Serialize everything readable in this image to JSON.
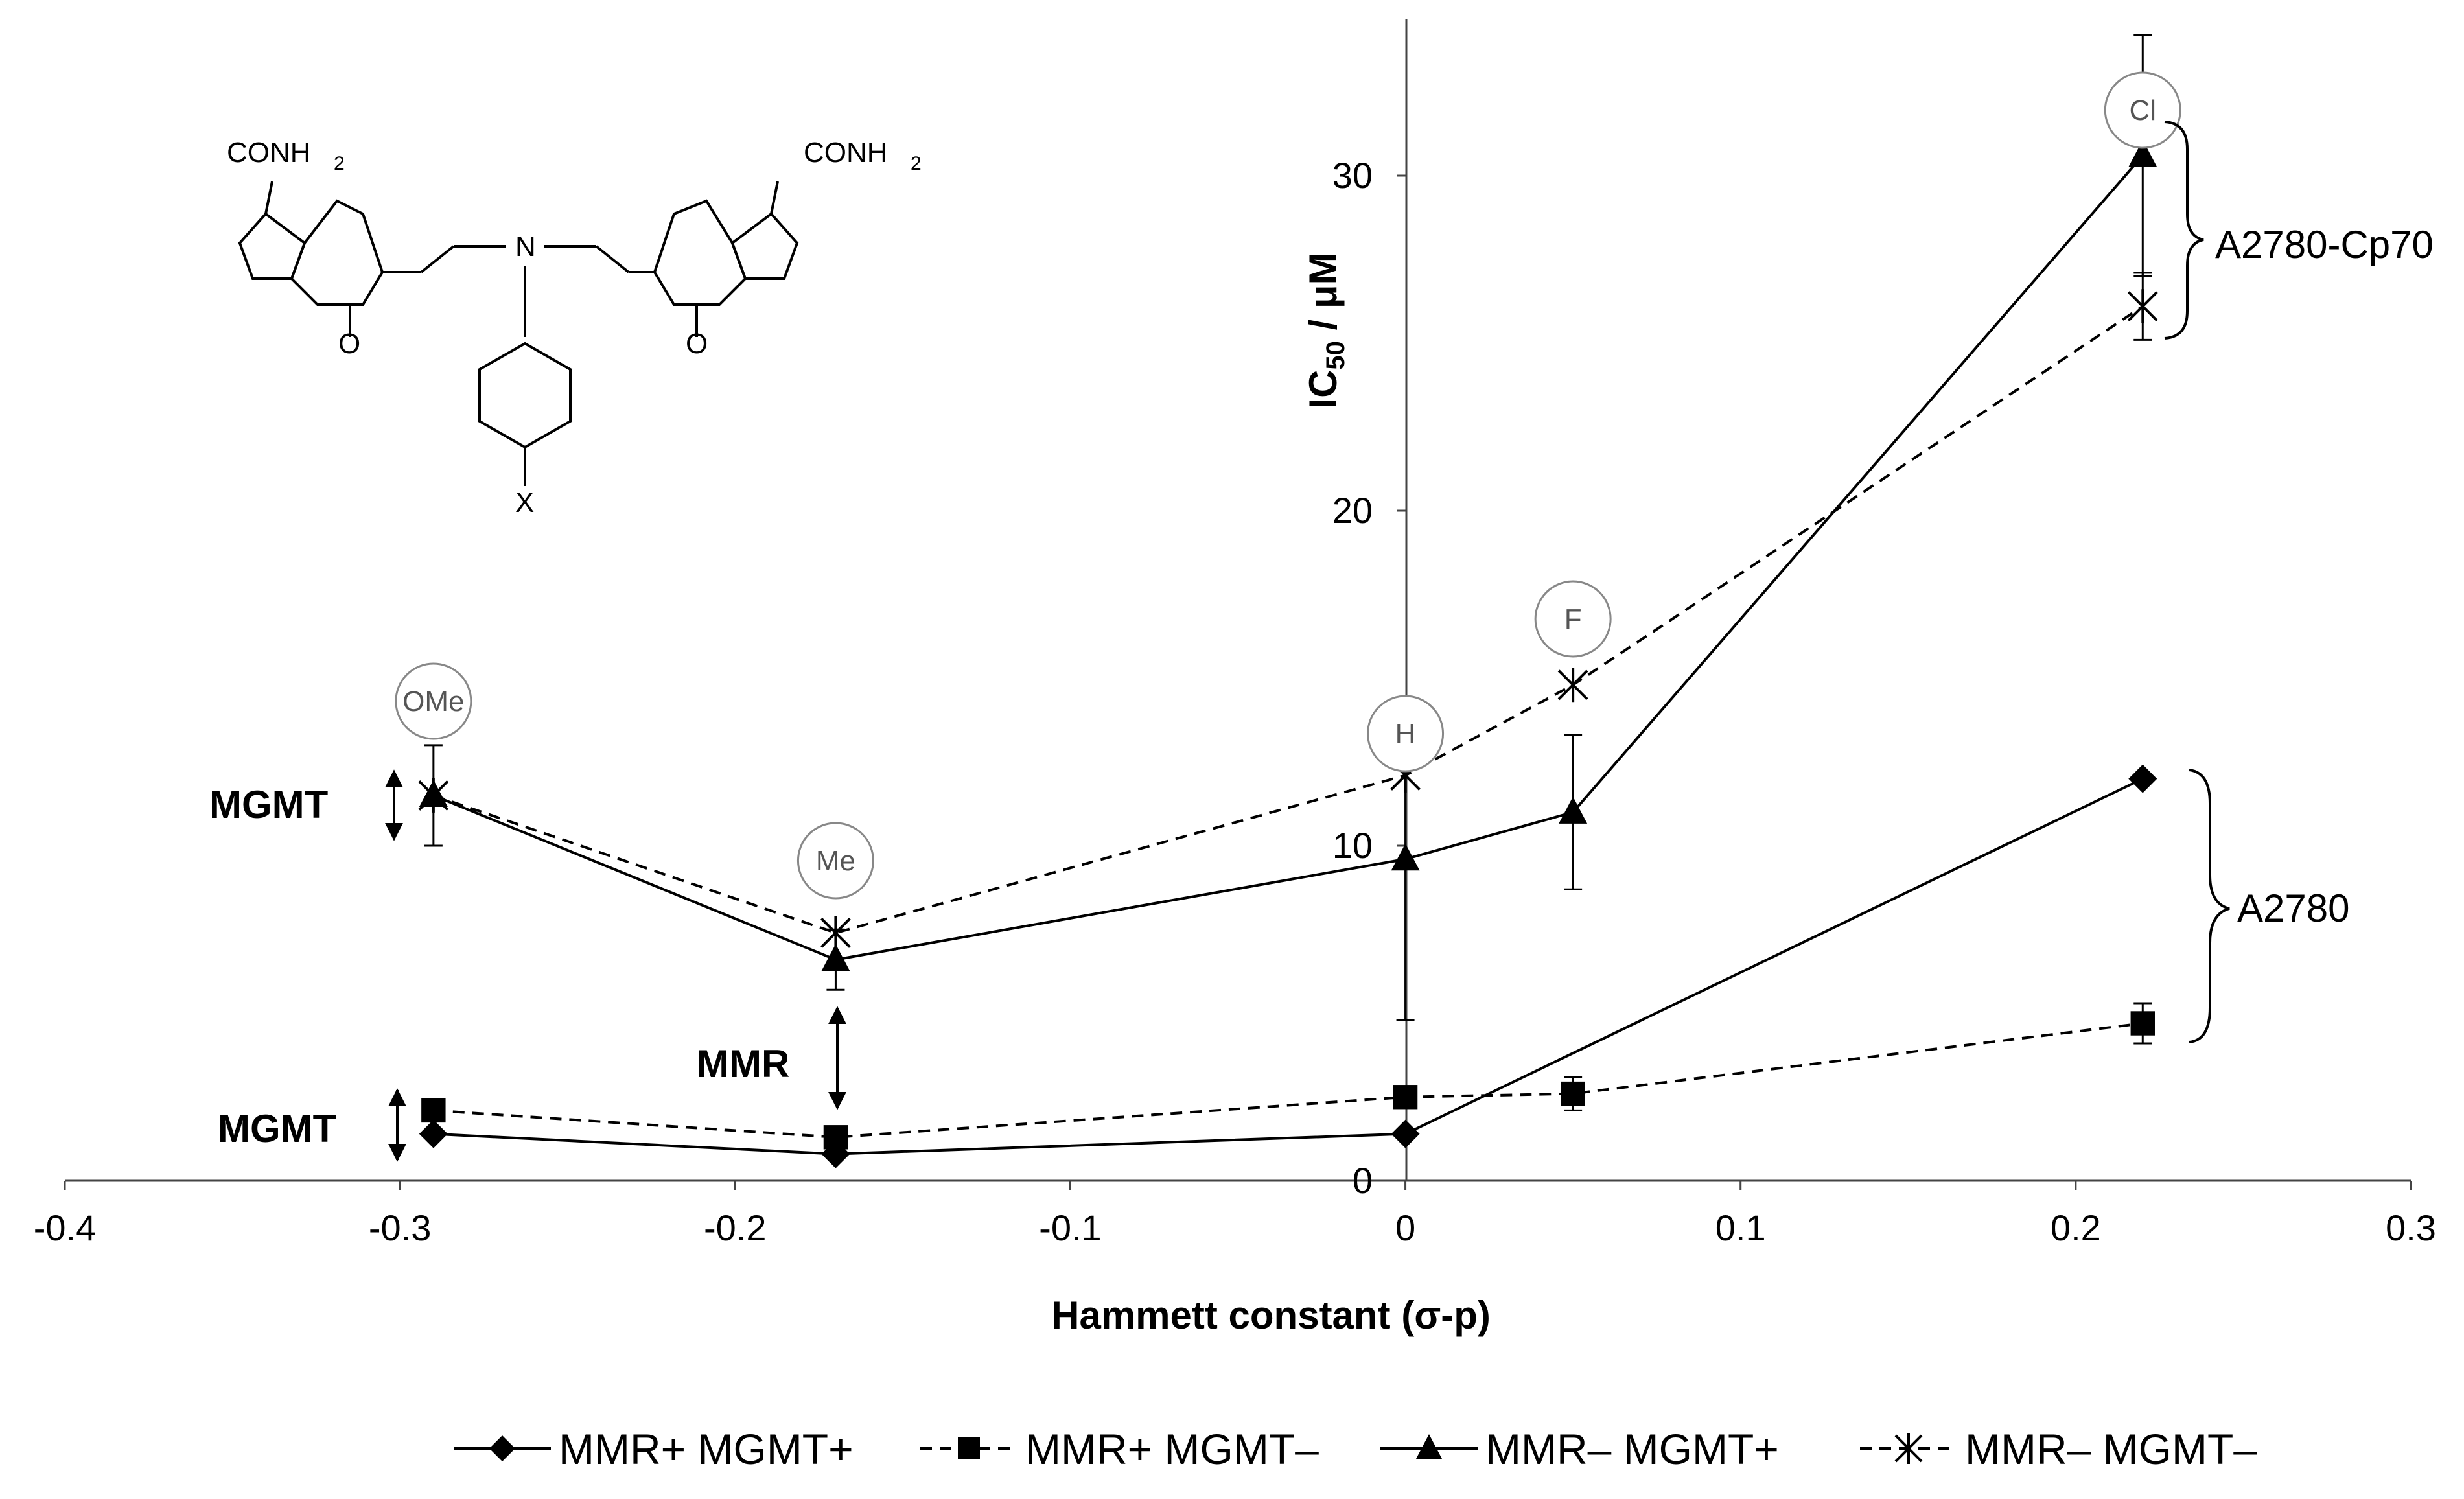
{
  "chart_data": {
    "type": "line",
    "xlabel": "Hammett constant (σ-p)",
    "ylabel_main": "IC",
    "ylabel_sub": "50",
    "ylabel_rest": " / μM",
    "xlim": [
      -0.4,
      0.3
    ],
    "ylim": [
      0,
      35
    ],
    "x_ticks": [
      -0.4,
      -0.3,
      -0.2,
      -0.1,
      0,
      0.1,
      0.2,
      0.3
    ],
    "x_tick_labels": [
      "-0.4",
      "-0.3",
      "-0.2",
      "-0.1",
      "0",
      "0.1",
      "0.2",
      "0.3"
    ],
    "y_ticks": [
      0,
      10,
      20,
      30
    ],
    "y_tick_labels": [
      "0",
      "10",
      "20",
      "30"
    ],
    "grid": false,
    "legend_position": "bottom",
    "series": [
      {
        "name": "MMR+ MGMT+",
        "marker": "diamond",
        "dash": false,
        "x": [
          -0.29,
          -0.17,
          0,
          0.22
        ],
        "y": [
          1.4,
          0.8,
          1.4,
          12.0
        ],
        "err": [
          0,
          0,
          0,
          0
        ]
      },
      {
        "name": "MMR+ MGMT–",
        "marker": "square",
        "dash": true,
        "x": [
          -0.29,
          -0.17,
          0,
          0.05,
          0.22
        ],
        "y": [
          2.1,
          1.3,
          2.5,
          2.6,
          4.7
        ],
        "err": [
          0,
          0,
          0,
          0.5,
          0.6
        ]
      },
      {
        "name": "MMR– MGMT+",
        "marker": "triangle",
        "dash": false,
        "x": [
          -0.29,
          -0.17,
          0,
          0.05,
          0.22
        ],
        "y": [
          11.5,
          6.6,
          9.6,
          11.0,
          30.6
        ],
        "err": [
          1.5,
          0.9,
          4.8,
          2.3,
          3.6
        ]
      },
      {
        "name": "MMR– MGMT–",
        "marker": "x",
        "dash": true,
        "x": [
          -0.29,
          -0.17,
          0,
          0.05,
          0.22
        ],
        "y": [
          11.5,
          7.4,
          12.1,
          14.8,
          26.1
        ],
        "err": [
          0,
          0,
          0,
          0,
          1.0
        ]
      }
    ],
    "annotations": {
      "substituents": [
        {
          "label": "OMe",
          "x": -0.29
        },
        {
          "label": "Me",
          "x": -0.17
        },
        {
          "label": "H",
          "x": 0
        },
        {
          "label": "F",
          "x": 0.05
        },
        {
          "label": "Cl",
          "x": 0.22
        }
      ],
      "mgmt_upper": "MGMT",
      "mgmt_lower": "MGMT",
      "mmr": "MMR",
      "group_top": "A2780-Cp70",
      "group_bottom": "A2780"
    },
    "molecule_labels": {
      "conh2": "CONH",
      "sub2": "2",
      "n": "N",
      "o": "O",
      "x": "X"
    }
  }
}
